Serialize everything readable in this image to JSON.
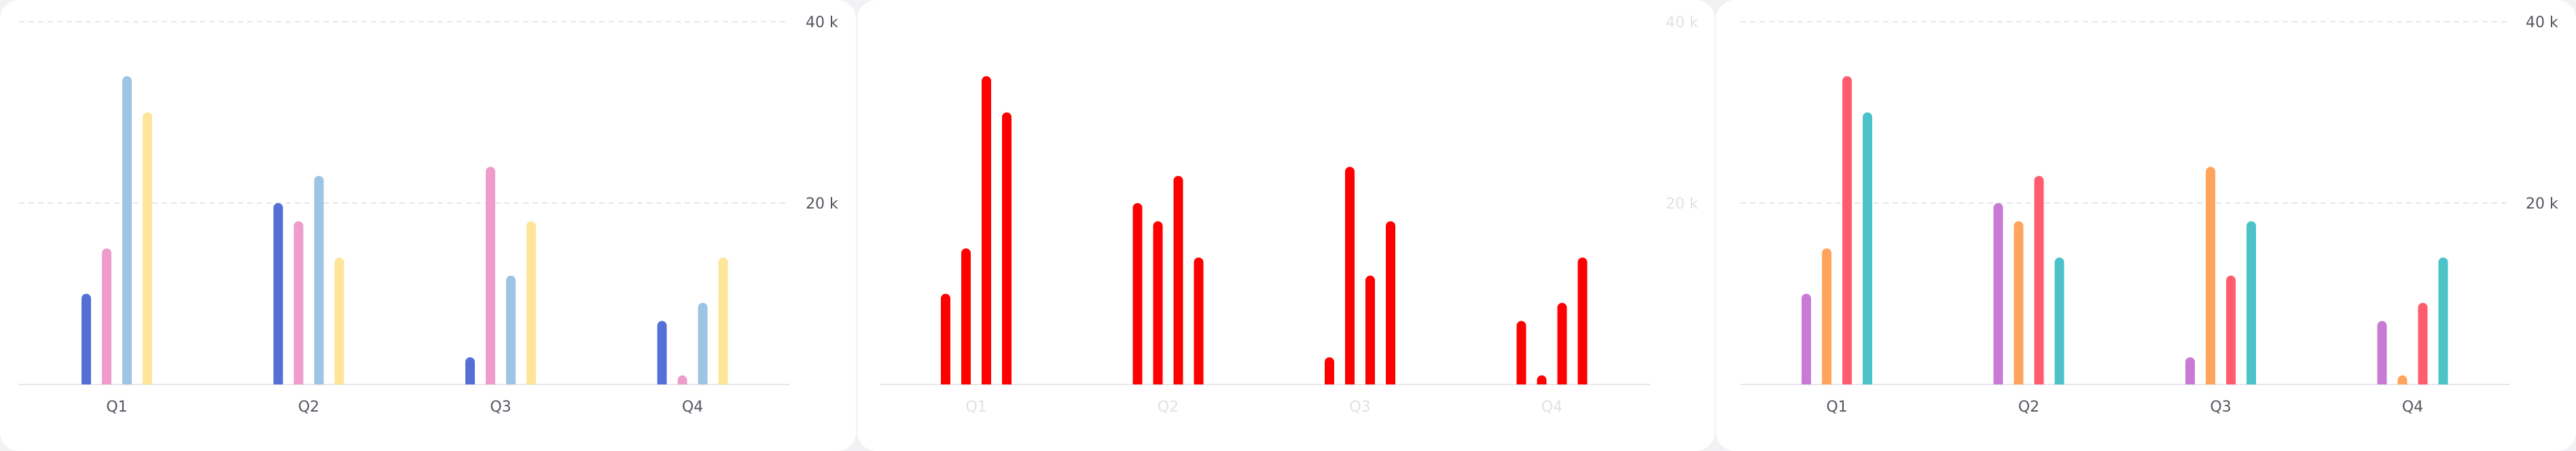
{
  "colors": {
    "background": "#ffffff",
    "grid": "#e6e6ea",
    "tick_text": "#555560",
    "faint_text": "#e2e2e6"
  },
  "chart_data": [
    {
      "type": "bar",
      "categories": [
        "Q1",
        "Q2",
        "Q3",
        "Q4"
      ],
      "series": [
        {
          "color": "#5470d6",
          "values": [
            10000,
            20000,
            3000,
            7000
          ]
        },
        {
          "color": "#ee9ccb",
          "values": [
            15000,
            18000,
            24000,
            1000
          ]
        },
        {
          "color": "#9ec4e4",
          "values": [
            34000,
            23000,
            12000,
            9000
          ]
        },
        {
          "color": "#fde59a",
          "values": [
            30000,
            14000,
            18000,
            14000
          ]
        }
      ],
      "y_ticks": [
        20000,
        40000
      ],
      "y_tick_labels": [
        "20 k",
        "40 k"
      ],
      "ylim": [
        0,
        40000
      ],
      "y_axis_side": "right",
      "grid": true,
      "tick_style": "normal"
    },
    {
      "type": "bar",
      "categories": [
        "Q1",
        "Q2",
        "Q3",
        "Q4"
      ],
      "series": [
        {
          "color": "#ff0000",
          "values": [
            10000,
            20000,
            3000,
            7000
          ]
        },
        {
          "color": "#ff0000",
          "values": [
            15000,
            18000,
            24000,
            1000
          ]
        },
        {
          "color": "#ff0000",
          "values": [
            34000,
            23000,
            12000,
            9000
          ]
        },
        {
          "color": "#ff0000",
          "values": [
            30000,
            14000,
            18000,
            14000
          ]
        }
      ],
      "y_ticks": [
        20000,
        40000
      ],
      "y_tick_labels": [
        "20 k",
        "40 k"
      ],
      "ylim": [
        0,
        40000
      ],
      "y_axis_side": "right",
      "grid": false,
      "tick_style": "faint"
    },
    {
      "type": "bar",
      "categories": [
        "Q1",
        "Q2",
        "Q3",
        "Q4"
      ],
      "series": [
        {
          "color": "#c77bd4",
          "values": [
            10000,
            20000,
            3000,
            7000
          ]
        },
        {
          "color": "#ffa45c",
          "values": [
            15000,
            18000,
            24000,
            1000
          ]
        },
        {
          "color": "#ff5d6e",
          "values": [
            34000,
            23000,
            12000,
            9000
          ]
        },
        {
          "color": "#4cc3c9",
          "values": [
            30000,
            14000,
            18000,
            14000
          ]
        }
      ],
      "y_ticks": [
        20000,
        40000
      ],
      "y_tick_labels": [
        "20 k",
        "40 k"
      ],
      "ylim": [
        0,
        40000
      ],
      "y_axis_side": "right",
      "grid": true,
      "tick_style": "normal"
    }
  ]
}
